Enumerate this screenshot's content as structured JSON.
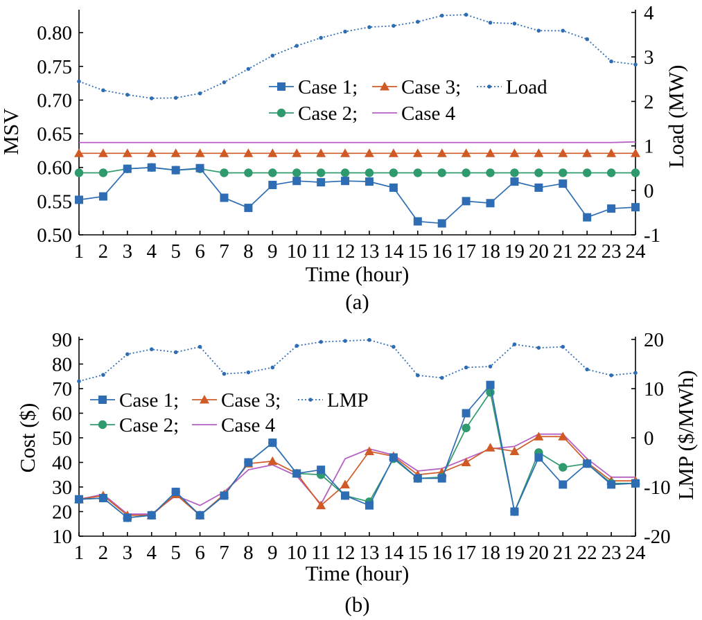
{
  "colors": {
    "case1": "#2e6db4",
    "case2": "#2f9a6e",
    "case3": "#d05a26",
    "case4": "#b660c4",
    "load": "#2e6db4"
  },
  "chart_data": [
    {
      "type": "line",
      "caption": "(a)",
      "xlabel": "Time (hour)",
      "ylabel": "MSV",
      "y2label": "Load (MW)",
      "x": [
        1,
        2,
        3,
        4,
        5,
        6,
        7,
        8,
        9,
        10,
        11,
        12,
        13,
        14,
        15,
        16,
        17,
        18,
        19,
        20,
        21,
        22,
        23,
        24
      ],
      "x_ticks": [
        "1",
        "2",
        "3",
        "4",
        "5",
        "6",
        "7",
        "8",
        "9",
        "10",
        "11",
        "12",
        "13",
        "14",
        "15",
        "16",
        "17",
        "18",
        "19",
        "20",
        "21",
        "22",
        "23",
        "24"
      ],
      "ylim": [
        0.5,
        0.83
      ],
      "y_ticks": [
        "0.50",
        "0.55",
        "0.60",
        "0.65",
        "0.70",
        "0.75",
        "0.80"
      ],
      "y2lim": [
        -1,
        4
      ],
      "y2_ticks": [
        "-1",
        "0",
        "1",
        "2",
        "3",
        "4"
      ],
      "legend_labels": [
        "Case 1;",
        "Case 3;",
        "Load",
        "Case 2;",
        "Case 4"
      ],
      "series": [
        {
          "name": "Case 1",
          "axis": "left",
          "marker": "square",
          "color": "case1",
          "values": [
            0.552,
            0.557,
            0.598,
            0.6,
            0.596,
            0.599,
            0.555,
            0.54,
            0.574,
            0.58,
            0.578,
            0.58,
            0.579,
            0.57,
            0.52,
            0.517,
            0.55,
            0.547,
            0.579,
            0.57,
            0.576,
            0.526,
            0.539,
            0.541
          ]
        },
        {
          "name": "Case 2",
          "axis": "left",
          "marker": "circle",
          "color": "case2",
          "values": [
            0.592,
            0.592,
            0.598,
            0.6,
            0.596,
            0.598,
            0.592,
            0.592,
            0.592,
            0.592,
            0.592,
            0.592,
            0.592,
            0.592,
            0.592,
            0.592,
            0.592,
            0.592,
            0.592,
            0.592,
            0.592,
            0.592,
            0.592,
            0.592
          ]
        },
        {
          "name": "Case 3",
          "axis": "left",
          "marker": "triangle",
          "color": "case3",
          "values": [
            0.621,
            0.621,
            0.621,
            0.621,
            0.621,
            0.621,
            0.621,
            0.621,
            0.621,
            0.621,
            0.621,
            0.621,
            0.621,
            0.621,
            0.621,
            0.621,
            0.621,
            0.621,
            0.621,
            0.621,
            0.621,
            0.621,
            0.621,
            0.621
          ]
        },
        {
          "name": "Case 4",
          "axis": "left",
          "marker": "none",
          "color": "case4",
          "values": [
            0.637,
            0.637,
            0.637,
            0.637,
            0.637,
            0.637,
            0.637,
            0.637,
            0.637,
            0.637,
            0.637,
            0.637,
            0.637,
            0.637,
            0.637,
            0.637,
            0.637,
            0.637,
            0.637,
            0.637,
            0.637,
            0.637,
            0.637,
            0.638
          ]
        },
        {
          "name": "Load",
          "axis": "right",
          "marker": "dot",
          "dotted": true,
          "color": "load",
          "values": [
            2.45,
            2.25,
            2.15,
            2.07,
            2.08,
            2.18,
            2.43,
            2.73,
            3.03,
            3.25,
            3.43,
            3.57,
            3.67,
            3.7,
            3.79,
            3.93,
            3.95,
            3.77,
            3.75,
            3.59,
            3.59,
            3.4,
            2.9,
            2.83
          ]
        }
      ]
    },
    {
      "type": "line",
      "caption": "(b)",
      "xlabel": "Time (hour)",
      "ylabel": "Cost ($)",
      "y2label": "LMP ($/MWh)",
      "x": [
        1,
        2,
        3,
        4,
        5,
        6,
        7,
        8,
        9,
        10,
        11,
        12,
        13,
        14,
        15,
        16,
        17,
        18,
        19,
        20,
        21,
        22,
        23,
        24
      ],
      "x_ticks": [
        "1",
        "2",
        "3",
        "4",
        "5",
        "6",
        "7",
        "8",
        "9",
        "10",
        "11",
        "12",
        "13",
        "14",
        "15",
        "16",
        "17",
        "18",
        "19",
        "20",
        "21",
        "22",
        "23",
        "24"
      ],
      "ylim": [
        10,
        90
      ],
      "y_ticks": [
        "10",
        "20",
        "30",
        "40",
        "50",
        "60",
        "70",
        "80",
        "90"
      ],
      "y2lim": [
        -20,
        20
      ],
      "y2_ticks": [
        "-20",
        "-10",
        "0",
        "10",
        "20"
      ],
      "legend_labels": [
        "Case 1;",
        "Case 3;",
        "LMP",
        "Case 2;",
        "Case 4"
      ],
      "series": [
        {
          "name": "Case 1",
          "axis": "left",
          "marker": "square",
          "color": "case1",
          "values": [
            25,
            25.5,
            17.5,
            18.5,
            28,
            18.5,
            26.5,
            40,
            48,
            35.5,
            37,
            26.5,
            22.5,
            42,
            33.5,
            33.5,
            60,
            71.5,
            20,
            42,
            31,
            39.5,
            31,
            31.5
          ]
        },
        {
          "name": "Case 2",
          "axis": "left",
          "marker": "circle",
          "color": "case2",
          "values": [
            25,
            25.5,
            17.5,
            18.5,
            28,
            18.5,
            26.5,
            40,
            48,
            35.5,
            35,
            26.5,
            24,
            41.5,
            33.5,
            34,
            54,
            68.5,
            20,
            44,
            38,
            39.5,
            31.5,
            31.5
          ]
        },
        {
          "name": "Case 3",
          "axis": "left",
          "marker": "triangle",
          "color": "case3",
          "values": [
            25,
            26.5,
            18.5,
            18.5,
            27,
            18.5,
            27,
            39.5,
            40.5,
            35.5,
            22.5,
            31,
            44.5,
            42.5,
            35,
            36,
            40,
            46,
            44.5,
            50.5,
            50.5,
            40,
            32.5,
            32.5
          ]
        },
        {
          "name": "Case 4",
          "axis": "left",
          "marker": "none",
          "color": "case4",
          "values": [
            25,
            27,
            19,
            19,
            26.5,
            22.5,
            28,
            37,
            39,
            34.5,
            23,
            41.5,
            45.5,
            43,
            36.5,
            37.5,
            41.5,
            45.5,
            46.5,
            51.5,
            51.5,
            41.5,
            34,
            34
          ]
        },
        {
          "name": "LMP",
          "axis": "right",
          "marker": "dot",
          "dotted": true,
          "color": "load",
          "values": [
            11.5,
            12.8,
            17.0,
            18.0,
            17.4,
            18.5,
            13.0,
            13.3,
            14.3,
            18.7,
            19.5,
            19.7,
            19.9,
            18.5,
            12.7,
            12.2,
            14.3,
            14.5,
            19.0,
            18.3,
            18.5,
            13.9,
            12.7,
            13.2
          ]
        }
      ]
    }
  ]
}
